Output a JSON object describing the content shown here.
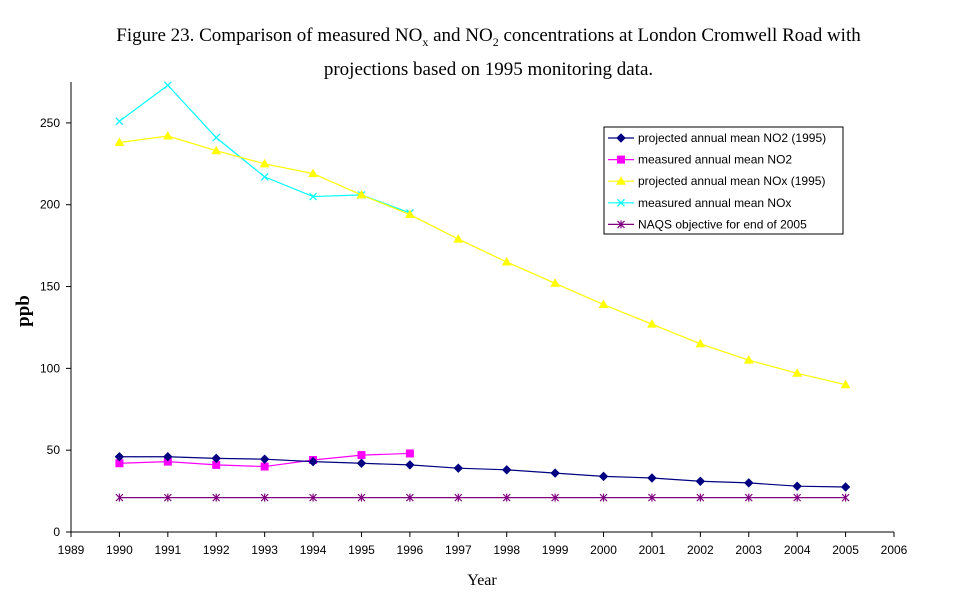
{
  "title": {
    "line1_a": "Figure 23. Comparison of measured NO",
    "line1_sub1": "x",
    "line1_b": " and NO",
    "line1_sub2": "2",
    "line1_c": " concentrations at London Cromwell Road with",
    "line2": "projections based on 1995 monitoring data."
  },
  "chart_data": {
    "type": "line",
    "xlabel": "Year",
    "ylabel": "ppb",
    "xlim": [
      1989,
      2006
    ],
    "ylim": [
      0,
      275
    ],
    "xticks": [
      1989,
      1990,
      1991,
      1992,
      1993,
      1994,
      1995,
      1996,
      1997,
      1998,
      1999,
      2000,
      2001,
      2002,
      2003,
      2004,
      2005,
      2006
    ],
    "yticks": [
      0,
      50,
      100,
      150,
      200,
      250
    ],
    "grid": false,
    "legend_position": "top-right",
    "series": [
      {
        "name": "projected annual mean NO2 (1995)",
        "color": "#000080",
        "marker": "diamond",
        "x": [
          1990,
          1991,
          1992,
          1993,
          1994,
          1995,
          1996,
          1997,
          1998,
          1999,
          2000,
          2001,
          2002,
          2003,
          2004,
          2005
        ],
        "y": [
          46,
          46,
          45,
          44.5,
          43,
          42,
          41,
          39,
          38,
          36,
          34,
          33,
          31,
          30,
          28,
          27.5
        ]
      },
      {
        "name": "measured annual mean NO2",
        "color": "#ff00ff",
        "marker": "square",
        "x": [
          1990,
          1991,
          1992,
          1993,
          1994,
          1995,
          1996
        ],
        "y": [
          42,
          43,
          41,
          40,
          44,
          47,
          48
        ]
      },
      {
        "name": "projected annual mean NOx (1995)",
        "color": "#ffff00",
        "marker": "triangle",
        "x": [
          1990,
          1991,
          1992,
          1993,
          1994,
          1995,
          1996,
          1997,
          1998,
          1999,
          2000,
          2001,
          2002,
          2003,
          2004,
          2005
        ],
        "y": [
          238,
          242,
          233,
          225,
          219,
          206,
          194,
          179,
          165,
          152,
          139,
          127,
          115,
          105,
          97,
          90
        ]
      },
      {
        "name": "measured annual mean NOx",
        "color": "#00ffff",
        "marker": "x",
        "x": [
          1990,
          1991,
          1992,
          1993,
          1994,
          1995,
          1996
        ],
        "y": [
          251,
          273,
          241,
          217,
          205,
          206,
          195
        ]
      },
      {
        "name": "NAQS objective for end of 2005",
        "color": "#800080",
        "marker": "star",
        "x": [
          1990,
          1991,
          1992,
          1993,
          1994,
          1995,
          1996,
          1997,
          1998,
          1999,
          2000,
          2001,
          2002,
          2003,
          2004,
          2005
        ],
        "y": [
          21,
          21,
          21,
          21,
          21,
          21,
          21,
          21,
          21,
          21,
          21,
          21,
          21,
          21,
          21,
          21
        ]
      }
    ]
  }
}
